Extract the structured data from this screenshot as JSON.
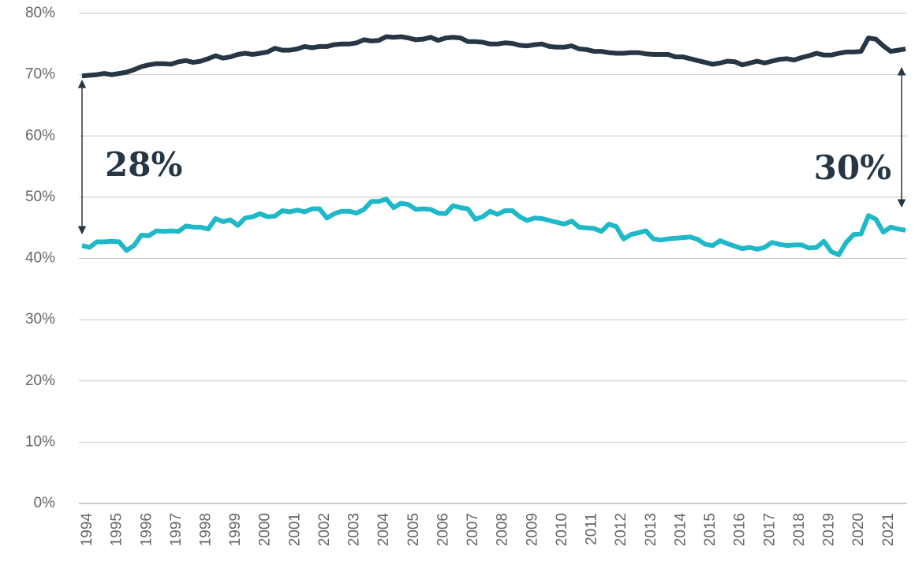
{
  "chart_data": {
    "type": "line",
    "x": [
      1994,
      1994.25,
      1994.5,
      1994.75,
      1995,
      1995.25,
      1995.5,
      1995.75,
      1996,
      1996.25,
      1996.5,
      1996.75,
      1997,
      1997.25,
      1997.5,
      1997.75,
      1998,
      1998.25,
      1998.5,
      1998.75,
      1999,
      1999.25,
      1999.5,
      1999.75,
      2000,
      2000.25,
      2000.5,
      2000.75,
      2001,
      2001.25,
      2001.5,
      2001.75,
      2002,
      2002.25,
      2002.5,
      2002.75,
      2003,
      2003.25,
      2003.5,
      2003.75,
      2004,
      2004.25,
      2004.5,
      2004.75,
      2005,
      2005.25,
      2005.5,
      2005.75,
      2006,
      2006.25,
      2006.5,
      2006.75,
      2007,
      2007.25,
      2007.5,
      2007.75,
      2008,
      2008.25,
      2008.5,
      2008.75,
      2009,
      2009.25,
      2009.5,
      2009.75,
      2010,
      2010.25,
      2010.5,
      2010.75,
      2011,
      2011.25,
      2011.5,
      2011.75,
      2012,
      2012.25,
      2012.5,
      2012.75,
      2013,
      2013.25,
      2013.5,
      2013.75,
      2014,
      2014.25,
      2014.5,
      2014.75,
      2015,
      2015.25,
      2015.5,
      2015.75,
      2016,
      2016.25,
      2016.5,
      2016.75,
      2017,
      2017.25,
      2017.5,
      2017.75,
      2018,
      2018.25,
      2018.5,
      2018.75,
      2019,
      2019.25,
      2019.5,
      2019.75,
      2020,
      2020.25,
      2020.5,
      2020.75,
      2021,
      2021.25,
      2021.5,
      2021.75
    ],
    "series": [
      {
        "color": "#263645",
        "values": [
          69.8,
          69.9,
          70.0,
          70.2,
          70.0,
          70.2,
          70.4,
          70.8,
          71.3,
          71.6,
          71.8,
          71.8,
          71.7,
          72.1,
          72.3,
          72.0,
          72.2,
          72.6,
          73.1,
          72.7,
          72.9,
          73.3,
          73.5,
          73.3,
          73.5,
          73.7,
          74.3,
          74.0,
          74.0,
          74.2,
          74.6,
          74.4,
          74.6,
          74.6,
          74.9,
          75.0,
          75.0,
          75.2,
          75.7,
          75.5,
          75.6,
          76.2,
          76.1,
          76.2,
          76.0,
          75.7,
          75.8,
          76.1,
          75.6,
          76.0,
          76.1,
          76.0,
          75.4,
          75.4,
          75.3,
          75.0,
          75.0,
          75.2,
          75.1,
          74.8,
          74.7,
          74.9,
          75.0,
          74.6,
          74.5,
          74.5,
          74.7,
          74.2,
          74.1,
          73.8,
          73.8,
          73.6,
          73.5,
          73.5,
          73.6,
          73.6,
          73.4,
          73.3,
          73.3,
          73.3,
          72.9,
          72.9,
          72.6,
          72.3,
          72.0,
          71.7,
          71.9,
          72.2,
          72.1,
          71.6,
          71.9,
          72.2,
          71.9,
          72.2,
          72.5,
          72.6,
          72.4,
          72.8,
          73.1,
          73.5,
          73.2,
          73.2,
          73.5,
          73.7,
          73.7,
          73.8,
          76.0,
          75.8,
          74.7,
          73.8,
          74.0,
          74.2
        ]
      },
      {
        "color": "#1fb8c8",
        "values": [
          42.1,
          41.8,
          42.7,
          42.7,
          42.8,
          42.7,
          41.3,
          42.1,
          43.8,
          43.7,
          44.5,
          44.4,
          44.5,
          44.4,
          45.3,
          45.1,
          45.1,
          44.8,
          46.5,
          46.0,
          46.3,
          45.4,
          46.6,
          46.8,
          47.3,
          46.8,
          46.9,
          47.8,
          47.6,
          47.9,
          47.6,
          48.1,
          48.1,
          46.6,
          47.3,
          47.7,
          47.7,
          47.4,
          48.0,
          49.3,
          49.3,
          49.7,
          48.3,
          49.0,
          48.8,
          48.0,
          48.1,
          48.0,
          47.4,
          47.3,
          48.6,
          48.3,
          48.1,
          46.4,
          46.8,
          47.7,
          47.2,
          47.8,
          47.8,
          46.8,
          46.2,
          46.6,
          46.5,
          46.2,
          45.9,
          45.6,
          46.1,
          45.1,
          45.0,
          44.9,
          44.4,
          45.6,
          45.2,
          43.2,
          43.9,
          44.2,
          44.5,
          43.2,
          43.0,
          43.2,
          43.3,
          43.4,
          43.5,
          43.1,
          42.3,
          42.1,
          42.9,
          42.4,
          42.0,
          41.6,
          41.8,
          41.5,
          41.8,
          42.6,
          42.3,
          42.1,
          42.2,
          42.2,
          41.7,
          41.8,
          42.8,
          41.1,
          40.6,
          42.6,
          43.9,
          44.0,
          47.0,
          46.4,
          44.3,
          45.1,
          44.8,
          44.6
        ]
      }
    ],
    "xlim": [
      1994,
      2021.75
    ],
    "xticks": [
      1994,
      1995,
      1996,
      1997,
      1998,
      1999,
      2000,
      2001,
      2002,
      2003,
      2004,
      2005,
      2006,
      2007,
      2008,
      2009,
      2010,
      2011,
      2012,
      2013,
      2014,
      2015,
      2016,
      2017,
      2018,
      2019,
      2020,
      2021
    ],
    "ylim": [
      0,
      80
    ],
    "yticks": [
      {
        "value": 0,
        "label": "0%"
      },
      {
        "value": 10,
        "label": "10%"
      },
      {
        "value": 20,
        "label": "20%"
      },
      {
        "value": 30,
        "label": "30%"
      },
      {
        "value": 40,
        "label": "40%"
      },
      {
        "value": 50,
        "label": "50%"
      },
      {
        "value": 60,
        "label": "60%"
      },
      {
        "value": 70,
        "label": "70%"
      },
      {
        "value": 80,
        "label": "80%"
      }
    ],
    "grid": true,
    "annotations": [
      "28%",
      "30%"
    ]
  }
}
